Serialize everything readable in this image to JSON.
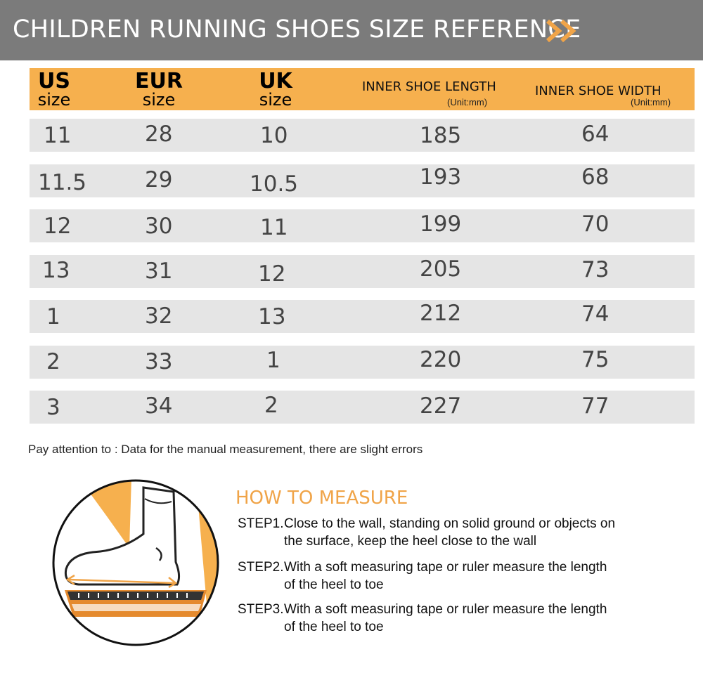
{
  "banner": {
    "title": "CHILDREN RUNNING SHOES SIZE REFERENCE",
    "arrow_icon": "double-chevron-right-icon",
    "background_color": "#7b7b7b",
    "arrow_color": "#f0a448"
  },
  "table": {
    "header_color": "#f6b04e",
    "row_color": "#e5e5e5",
    "headers": {
      "us_big": "US",
      "us_small": "size",
      "eur_big": "EUR",
      "eur_small": "size",
      "uk_big": "UK",
      "uk_small": "size",
      "length": "INNER SHOE LENGTH",
      "length_unit": "(Unit:mm)",
      "width": "INNER SHOE WIDTH",
      "width_unit": "(Unit:mm)"
    },
    "rows": [
      {
        "us": "11",
        "eur": "28",
        "uk": "10",
        "length": "185",
        "width": "64"
      },
      {
        "us": "11.5",
        "eur": "29",
        "uk": "10.5",
        "length": "193",
        "width": "68"
      },
      {
        "us": "12",
        "eur": "30",
        "uk": "11",
        "length": "199",
        "width": "70"
      },
      {
        "us": "13",
        "eur": "31",
        "uk": "12",
        "length": "205",
        "width": "73"
      },
      {
        "us": "1",
        "eur": "32",
        "uk": "13",
        "length": "212",
        "width": "74"
      },
      {
        "us": "2",
        "eur": "33",
        "uk": "1",
        "length": "220",
        "width": "75"
      },
      {
        "us": "3",
        "eur": "34",
        "uk": "2",
        "length": "227",
        "width": "77"
      }
    ]
  },
  "note": "Pay attention to : Data for the manual measurement, there are slight errors",
  "how_to_measure": {
    "illustration_icon": "foot-measurement-icon",
    "title": "HOW TO MEASURE",
    "title_color": "#f0a448",
    "steps": [
      {
        "label": "STEP1.",
        "line1": "Close to the wall, standing on solid ground or objects on",
        "line2": "the surface, keep the heel close to the wall"
      },
      {
        "label": "STEP2.",
        "line1": "With a soft measuring tape or ruler measure the length",
        "line2": "of the heel to toe"
      },
      {
        "label": "STEP3.",
        "line1": "With a soft measuring tape or ruler measure the length",
        "line2": "of the heel to toe"
      }
    ]
  }
}
